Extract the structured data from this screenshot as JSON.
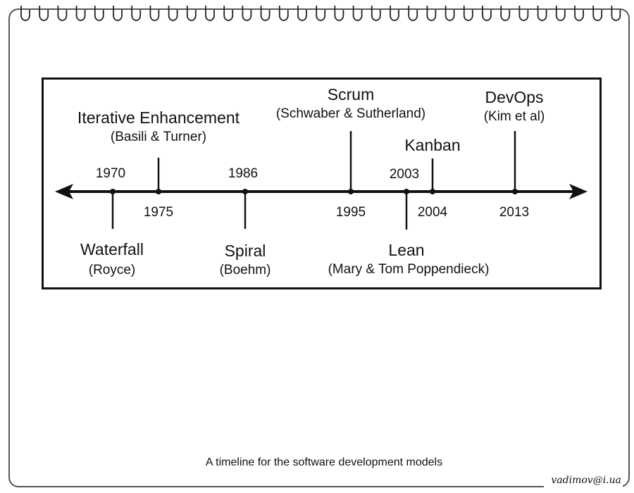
{
  "models": [
    {
      "id": "waterfall",
      "year": "1970",
      "title": "Waterfall",
      "authors": "(Royce)"
    },
    {
      "id": "iterative",
      "year": "1975",
      "title": "Iterative Enhancement",
      "authors": "(Basili & Turner)"
    },
    {
      "id": "spiral",
      "year": "1986",
      "title": "Spiral",
      "authors": "(Boehm)"
    },
    {
      "id": "scrum",
      "year": "1995",
      "title": "Scrum",
      "authors": "(Schwaber & Sutherland)"
    },
    {
      "id": "lean",
      "year": "2003",
      "title": "Lean",
      "authors": "(Mary & Tom Poppendieck)"
    },
    {
      "id": "kanban",
      "year": "2004",
      "title": "Kanban",
      "authors": ""
    },
    {
      "id": "devops",
      "year": "2013",
      "title": "DevOps",
      "authors": "(Kim et al)"
    }
  ],
  "caption": "A timeline for the software development models",
  "signature": "vadimov@i.ua",
  "colors": {
    "ink": "#111111",
    "border": "#555555",
    "background": "#ffffff"
  }
}
